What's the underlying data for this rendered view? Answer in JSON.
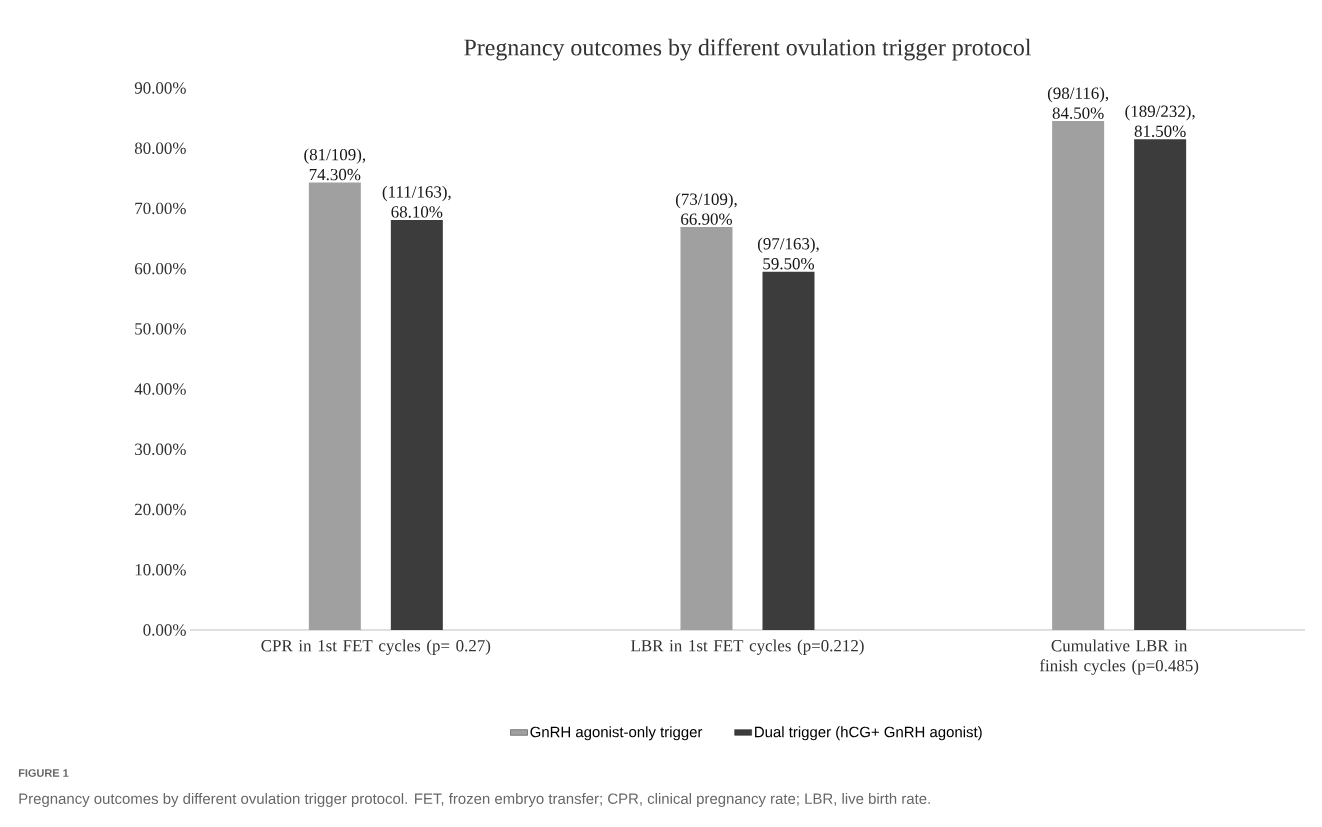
{
  "chart_data": {
    "type": "bar",
    "title": "Pregnancy outcomes by different ovulation trigger protocol",
    "categories": [
      "CPR in 1st FET cycles (p= 0.27)",
      "LBR in 1st FET cycles (p=0.212)",
      "Cumulative LBR in finish cycles (p=0.485)"
    ],
    "series": [
      {
        "name": "GnRH agonist-only trigger",
        "color": "#a0a0a0",
        "values": [
          74.3,
          66.9,
          84.5
        ],
        "value_labels": [
          "(81/109), 74.30%",
          "(73/109), 66.90%",
          "(98/116), 84.50%"
        ]
      },
      {
        "name": "Dual trigger (hCG+ GnRH agonist)",
        "color": "#3c3c3c",
        "values": [
          68.1,
          59.5,
          81.5
        ],
        "value_labels": [
          "(111/163), 68.10%",
          "(97/163), 59.50%",
          "(189/232), 81.50%"
        ]
      }
    ],
    "ylim": [
      0,
      90
    ],
    "yticks": [
      {
        "value": 0,
        "label": "0.00%"
      },
      {
        "value": 10,
        "label": "10.00%"
      },
      {
        "value": 20,
        "label": "20.00%"
      },
      {
        "value": 30,
        "label": "30.00%"
      },
      {
        "value": 40,
        "label": "40.00%"
      },
      {
        "value": 50,
        "label": "50.00%"
      },
      {
        "value": 60,
        "label": "60.00%"
      },
      {
        "value": 70,
        "label": "70.00%"
      },
      {
        "value": 80,
        "label": "80.00%"
      },
      {
        "value": 90,
        "label": "90.00%"
      }
    ],
    "legend": "bottom",
    "annotations": [
      "FIGURE 1",
      "Pregnancy outcomes by different ovulation trigger protocol. FET, frozen embryo transfer; CPR, clinical pregnancy rate; LBR, live birth rate."
    ]
  }
}
